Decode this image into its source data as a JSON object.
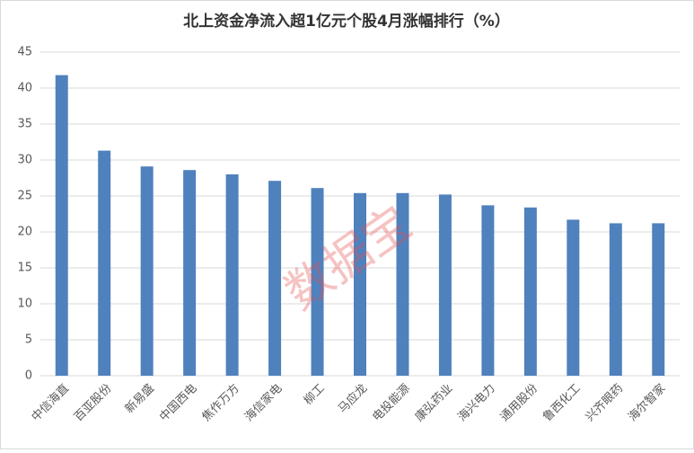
{
  "chart_data": {
    "type": "bar",
    "title": "北上资金净流入超1亿元个股4月涨幅排行（%）",
    "categories": [
      "中信海直",
      "百亚股份",
      "新易盛",
      "中国西电",
      "焦作万方",
      "海信家电",
      "柳工",
      "马应龙",
      "电投能源",
      "康弘药业",
      "海兴电力",
      "通用股份",
      "鲁西化工",
      "兴齐眼药",
      "海尔智家"
    ],
    "values": [
      41.8,
      31.3,
      29.1,
      28.6,
      28.0,
      27.1,
      26.1,
      25.4,
      25.4,
      25.2,
      23.7,
      23.4,
      21.7,
      21.2,
      21.2
    ],
    "color": "#4f81bd",
    "ylim": [
      0,
      45
    ],
    "yticks": [
      0,
      5,
      10,
      15,
      20,
      25,
      30,
      35,
      40,
      45
    ],
    "grid": true,
    "watermark": "数据宝"
  }
}
